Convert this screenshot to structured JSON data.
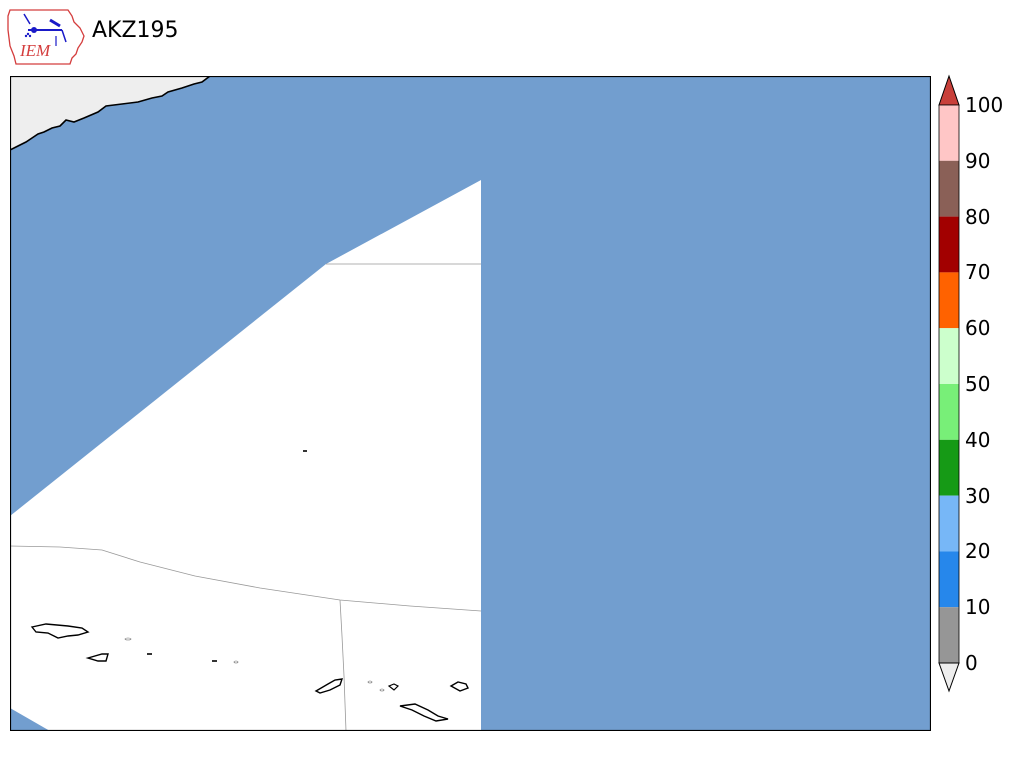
{
  "header": {
    "title": "AKZ195",
    "logo_text": "IEM"
  },
  "colors": {
    "ocean": "#729ecf",
    "land": "#ffffff",
    "outside_land": "#eeeeee",
    "coast": "#000000",
    "border": "#999999"
  },
  "colorbar": {
    "labels": [
      "100",
      "90",
      "80",
      "70",
      "60",
      "50",
      "40",
      "30",
      "20",
      "10",
      "0"
    ],
    "bins": [
      {
        "from": 90,
        "to": 100,
        "color": "#ffc6c6"
      },
      {
        "from": 80,
        "to": 90,
        "color": "#8a6057"
      },
      {
        "from": 70,
        "to": 80,
        "color": "#a20000"
      },
      {
        "from": 60,
        "to": 70,
        "color": "#ff6200"
      },
      {
        "from": 50,
        "to": 60,
        "color": "#ccffcc"
      },
      {
        "from": 40,
        "to": 50,
        "color": "#78ef78"
      },
      {
        "from": 30,
        "to": 40,
        "color": "#169a16"
      },
      {
        "from": 20,
        "to": 30,
        "color": "#77b7f7"
      },
      {
        "from": 10,
        "to": 20,
        "color": "#2687eb"
      },
      {
        "from": 0,
        "to": 10,
        "color": "#969696"
      }
    ],
    "over_color": "#c8403a",
    "under_color": "#eeeeee"
  }
}
